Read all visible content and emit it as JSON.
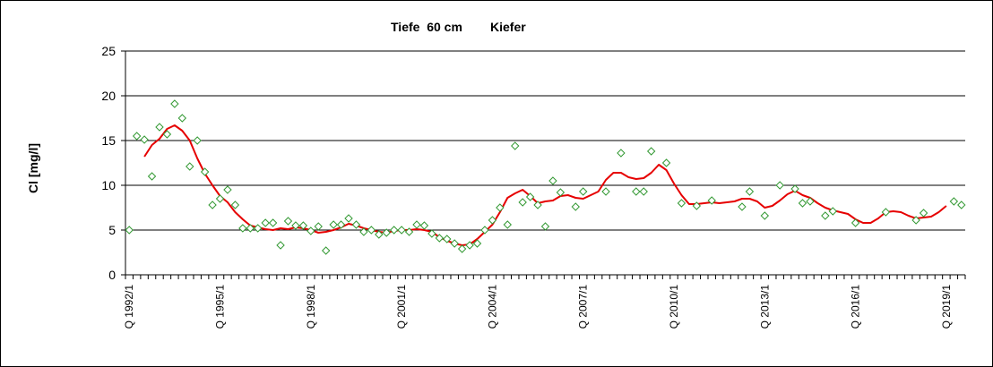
{
  "chart_data": {
    "type": "line",
    "title_depth": "Tiefe  60 cm",
    "title_species": "Kiefer",
    "ylabel": "Cl [mg/l]",
    "xlabel": "",
    "ylim": [
      0,
      25
    ],
    "yticks": [
      0,
      5,
      10,
      15,
      20,
      25
    ],
    "xticks": [
      "Q 1992/1",
      "Q 1995/1",
      "Q 1998/1",
      "Q 2001/1",
      "Q 2004/1",
      "Q 2007/1",
      "Q 2010/1",
      "Q 2013/1",
      "Q 2016/1",
      "Q 2019/1"
    ],
    "x_unit": "quarter",
    "x_start": "1992 Q1",
    "x_end": "1999 Q4 + 20 years",
    "grid": "horizontal",
    "legend": "none",
    "colors": {
      "measured": "#339933",
      "trend": "#e60000",
      "grid": "#000000",
      "frame": "#000000"
    },
    "series": [
      {
        "style": "markers-diamond",
        "values": [
          [
            "1992 Q1",
            5.0
          ],
          [
            "1992 Q2",
            15.5
          ],
          [
            "1992 Q3",
            15.1
          ],
          [
            "1992 Q4",
            11.0
          ],
          [
            "1993 Q1",
            16.5
          ],
          [
            "1993 Q2",
            15.7
          ],
          [
            "1993 Q3",
            19.1
          ],
          [
            "1993 Q4",
            17.5
          ],
          [
            "1994 Q1",
            12.1
          ],
          [
            "1994 Q2",
            15.0
          ],
          [
            "1994 Q3",
            11.5
          ],
          [
            "1994 Q4",
            7.8
          ],
          [
            "1995 Q1",
            8.5
          ],
          [
            "1995 Q2",
            9.5
          ],
          [
            "1995 Q3",
            7.8
          ],
          [
            "1995 Q4",
            5.2
          ],
          [
            "1996 Q1",
            5.2
          ],
          [
            "1996 Q2",
            5.2
          ],
          [
            "1996 Q3",
            5.8
          ],
          [
            "1996 Q4",
            5.8
          ],
          [
            "1997 Q1",
            3.3
          ],
          [
            "1997 Q2",
            6.0
          ],
          [
            "1997 Q3",
            5.5
          ],
          [
            "1997 Q4",
            5.5
          ],
          [
            "1998 Q1",
            4.9
          ],
          [
            "1998 Q2",
            5.4
          ],
          [
            "1998 Q3",
            2.7
          ],
          [
            "1998 Q4",
            5.6
          ],
          [
            "1999 Q1",
            5.6
          ],
          [
            "1999 Q2",
            6.3
          ],
          [
            "1999 Q3",
            5.6
          ],
          [
            "1999 Q4",
            4.8
          ],
          [
            "2000 Q1",
            5.0
          ],
          [
            "2000 Q2",
            4.5
          ],
          [
            "2000 Q3",
            4.7
          ],
          [
            "2000 Q4",
            5.0
          ],
          [
            "2001 Q1",
            5.0
          ],
          [
            "2001 Q2",
            4.8
          ],
          [
            "2001 Q3",
            5.6
          ],
          [
            "2001 Q4",
            5.5
          ],
          [
            "2002 Q1",
            4.6
          ],
          [
            "2002 Q2",
            4.1
          ],
          [
            "2002 Q3",
            4.0
          ],
          [
            "2002 Q4",
            3.5
          ],
          [
            "2003 Q1",
            2.9
          ],
          [
            "2003 Q2",
            3.3
          ],
          [
            "2003 Q3",
            3.5
          ],
          [
            "2003 Q4",
            5.0
          ],
          [
            "2004 Q1",
            6.1
          ],
          [
            "2004 Q2",
            7.5
          ],
          [
            "2004 Q3",
            5.6
          ],
          [
            "2004 Q4",
            14.4
          ],
          [
            "2005 Q1",
            8.1
          ],
          [
            "2005 Q2",
            8.7
          ],
          [
            "2005 Q3",
            7.8
          ],
          [
            "2005 Q4",
            5.4
          ],
          [
            "2006 Q1",
            10.5
          ],
          [
            "2006 Q2",
            9.2
          ],
          [
            "2006 Q4",
            7.6
          ],
          [
            "2007 Q1",
            9.3
          ],
          [
            "2007 Q4",
            9.3
          ],
          [
            "2008 Q2",
            13.6
          ],
          [
            "2008 Q4",
            9.3
          ],
          [
            "2009 Q1",
            9.3
          ],
          [
            "2009 Q2",
            13.8
          ],
          [
            "2009 Q4",
            12.5
          ],
          [
            "2010 Q2",
            8.0
          ],
          [
            "2010 Q4",
            7.7
          ],
          [
            "2011 Q2",
            8.3
          ],
          [
            "2012 Q2",
            7.6
          ],
          [
            "2012 Q3",
            9.3
          ],
          [
            "2013 Q1",
            6.6
          ],
          [
            "2013 Q3",
            10.0
          ],
          [
            "2014 Q1",
            9.6
          ],
          [
            "2014 Q2",
            8.0
          ],
          [
            "2014 Q3",
            8.2
          ],
          [
            "2015 Q1",
            6.6
          ],
          [
            "2015 Q2",
            7.1
          ],
          [
            "2016 Q1",
            5.8
          ],
          [
            "2017 Q1",
            7.0
          ],
          [
            "2018 Q1",
            6.1
          ],
          [
            "2018 Q2",
            6.9
          ],
          [
            "2019 Q2",
            8.2
          ],
          [
            "2019 Q3",
            7.8
          ]
        ]
      },
      {
        "style": "line",
        "values": [
          [
            "1992 Q3",
            13.2
          ],
          [
            "1992 Q4",
            14.5
          ],
          [
            "1993 Q1",
            15.2
          ],
          [
            "1993 Q2",
            16.3
          ],
          [
            "1993 Q3",
            16.7
          ],
          [
            "1993 Q4",
            16.1
          ],
          [
            "1994 Q1",
            15.0
          ],
          [
            "1994 Q2",
            13.0
          ],
          [
            "1994 Q3",
            11.3
          ],
          [
            "1994 Q4",
            10.0
          ],
          [
            "1995 Q1",
            8.8
          ],
          [
            "1995 Q2",
            8.1
          ],
          [
            "1995 Q3",
            7.0
          ],
          [
            "1995 Q4",
            6.2
          ],
          [
            "1996 Q1",
            5.5
          ],
          [
            "1996 Q2",
            5.3
          ],
          [
            "1996 Q3",
            5.1
          ],
          [
            "1996 Q4",
            5.0
          ],
          [
            "1997 Q1",
            5.2
          ],
          [
            "1997 Q2",
            5.1
          ],
          [
            "1997 Q3",
            5.3
          ],
          [
            "1997 Q4",
            5.2
          ],
          [
            "1998 Q1",
            5.0
          ],
          [
            "1998 Q2",
            4.7
          ],
          [
            "1998 Q3",
            4.8
          ],
          [
            "1998 Q4",
            5.0
          ],
          [
            "1999 Q1",
            5.3
          ],
          [
            "1999 Q2",
            5.7
          ],
          [
            "1999 Q3",
            5.5
          ],
          [
            "1999 Q4",
            5.2
          ],
          [
            "2000 Q1",
            5.0
          ],
          [
            "2000 Q2",
            4.8
          ],
          [
            "2000 Q3",
            4.7
          ],
          [
            "2000 Q4",
            4.9
          ],
          [
            "2001 Q1",
            5.0
          ],
          [
            "2001 Q2",
            5.0
          ],
          [
            "2001 Q3",
            5.1
          ],
          [
            "2001 Q4",
            5.0
          ],
          [
            "2002 Q1",
            4.8
          ],
          [
            "2002 Q2",
            4.2
          ],
          [
            "2002 Q3",
            3.8
          ],
          [
            "2002 Q4",
            3.5
          ],
          [
            "2003 Q1",
            3.3
          ],
          [
            "2003 Q2",
            3.4
          ],
          [
            "2003 Q3",
            4.0
          ],
          [
            "2003 Q4",
            4.8
          ],
          [
            "2004 Q1",
            5.6
          ],
          [
            "2004 Q2",
            7.0
          ],
          [
            "2004 Q3",
            8.6
          ],
          [
            "2004 Q4",
            9.1
          ],
          [
            "2005 Q1",
            9.5
          ],
          [
            "2005 Q2",
            8.8
          ],
          [
            "2005 Q3",
            8.0
          ],
          [
            "2005 Q4",
            8.2
          ],
          [
            "2006 Q1",
            8.3
          ],
          [
            "2006 Q2",
            8.8
          ],
          [
            "2006 Q3",
            8.9
          ],
          [
            "2006 Q4",
            8.6
          ],
          [
            "2007 Q1",
            8.5
          ],
          [
            "2007 Q2",
            8.9
          ],
          [
            "2007 Q3",
            9.3
          ],
          [
            "2007 Q4",
            10.6
          ],
          [
            "2008 Q1",
            11.4
          ],
          [
            "2008 Q2",
            11.4
          ],
          [
            "2008 Q3",
            10.9
          ],
          [
            "2008 Q4",
            10.7
          ],
          [
            "2009 Q1",
            10.8
          ],
          [
            "2009 Q2",
            11.4
          ],
          [
            "2009 Q3",
            12.3
          ],
          [
            "2009 Q4",
            11.7
          ],
          [
            "2010 Q1",
            10.2
          ],
          [
            "2010 Q2",
            8.9
          ],
          [
            "2010 Q3",
            7.9
          ],
          [
            "2010 Q4",
            7.9
          ],
          [
            "2011 Q1",
            8.0
          ],
          [
            "2011 Q2",
            8.1
          ],
          [
            "2011 Q3",
            8.0
          ],
          [
            "2011 Q4",
            8.1
          ],
          [
            "2012 Q1",
            8.2
          ],
          [
            "2012 Q2",
            8.5
          ],
          [
            "2012 Q3",
            8.5
          ],
          [
            "2012 Q4",
            8.2
          ],
          [
            "2013 Q1",
            7.5
          ],
          [
            "2013 Q2",
            7.7
          ],
          [
            "2013 Q3",
            8.3
          ],
          [
            "2013 Q4",
            9.0
          ],
          [
            "2014 Q1",
            9.4
          ],
          [
            "2014 Q2",
            8.9
          ],
          [
            "2014 Q3",
            8.6
          ],
          [
            "2014 Q4",
            8.0
          ],
          [
            "2015 Q1",
            7.5
          ],
          [
            "2015 Q2",
            7.2
          ],
          [
            "2015 Q3",
            7.0
          ],
          [
            "2015 Q4",
            6.8
          ],
          [
            "2016 Q1",
            6.2
          ],
          [
            "2016 Q2",
            5.8
          ],
          [
            "2016 Q3",
            5.8
          ],
          [
            "2016 Q4",
            6.3
          ],
          [
            "2017 Q1",
            7.0
          ],
          [
            "2017 Q2",
            7.1
          ],
          [
            "2017 Q3",
            7.0
          ],
          [
            "2017 Q4",
            6.6
          ],
          [
            "2018 Q1",
            6.3
          ],
          [
            "2018 Q2",
            6.4
          ],
          [
            "2018 Q3",
            6.5
          ],
          [
            "2018 Q4",
            7.0
          ],
          [
            "2019 Q1",
            7.7
          ]
        ]
      }
    ]
  }
}
